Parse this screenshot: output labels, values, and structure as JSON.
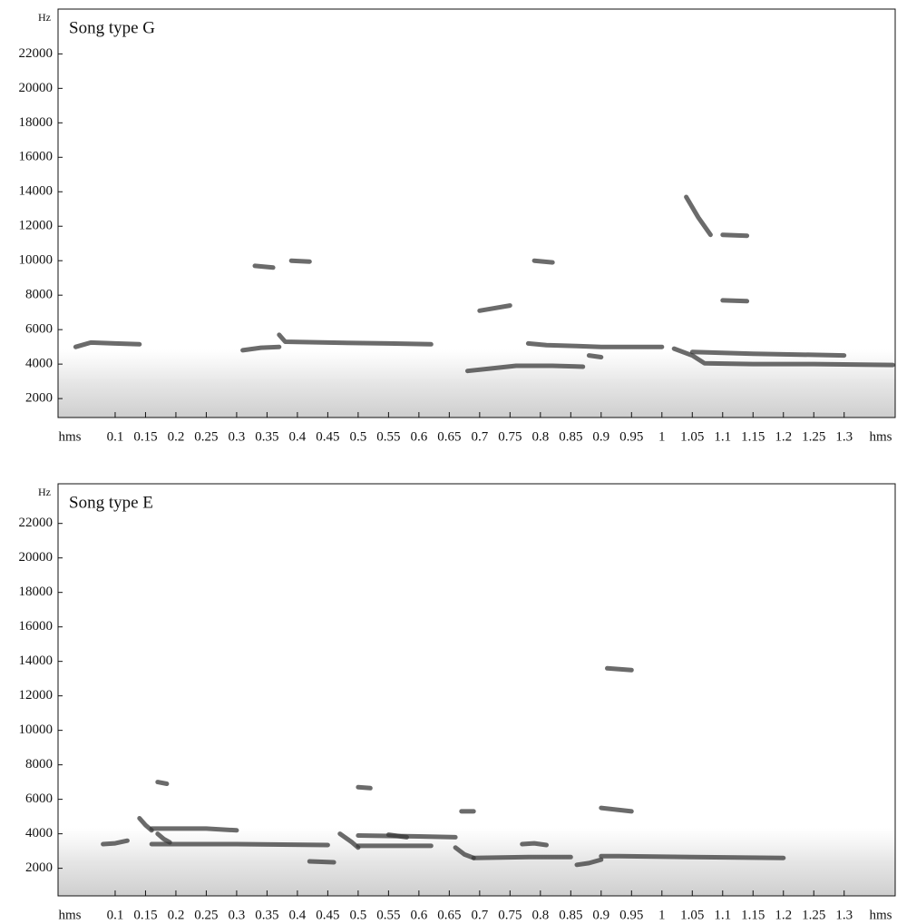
{
  "chart_data": [
    {
      "type": "spectrogram",
      "title": "Song type G",
      "y_unit": "Hz",
      "x_unit": "hms",
      "xlim": [
        0.006,
        1.384
      ],
      "ylim": [
        900,
        24600
      ],
      "xticks": [
        0.1,
        0.15,
        0.2,
        0.25,
        0.3,
        0.35,
        0.4,
        0.45,
        0.5,
        0.55,
        0.6,
        0.65,
        0.7,
        0.75,
        0.8,
        0.85,
        0.9,
        0.95,
        1,
        1.05,
        1.1,
        1.15,
        1.2,
        1.25,
        1.3
      ],
      "yticks": [
        2000,
        4000,
        6000,
        8000,
        10000,
        12000,
        14000,
        16000,
        18000,
        20000,
        22000
      ],
      "color": "#3a3a3a",
      "traces": [
        {
          "x": [
            0.035,
            0.06,
            0.1,
            0.14
          ],
          "values": [
            5000,
            5250,
            5200,
            5150
          ]
        },
        {
          "x": [
            0.31,
            0.34,
            0.37
          ],
          "values": [
            4800,
            4950,
            5000
          ]
        },
        {
          "x": [
            0.37,
            0.38,
            0.45,
            0.55,
            0.62
          ],
          "values": [
            5700,
            5300,
            5250,
            5200,
            5150
          ]
        },
        {
          "x": [
            0.68,
            0.72,
            0.76,
            0.82,
            0.87
          ],
          "values": [
            3600,
            3750,
            3900,
            3900,
            3850
          ]
        },
        {
          "x": [
            0.78,
            0.81,
            0.86,
            0.9,
            1.0
          ],
          "values": [
            5200,
            5100,
            5050,
            5000,
            5000
          ]
        },
        {
          "x": [
            0.88,
            0.9
          ],
          "values": [
            4500,
            4400
          ]
        },
        {
          "x": [
            1.02,
            1.05,
            1.07,
            1.15,
            1.25,
            1.38
          ],
          "values": [
            4900,
            4500,
            4050,
            4000,
            4000,
            3950
          ]
        },
        {
          "x": [
            1.05,
            1.15,
            1.3
          ],
          "values": [
            4700,
            4600,
            4500
          ]
        },
        {
          "x": [
            0.33,
            0.36
          ],
          "values": [
            9700,
            9600
          ]
        },
        {
          "x": [
            0.39,
            0.42
          ],
          "values": [
            10000,
            9950
          ]
        },
        {
          "x": [
            0.79,
            0.82
          ],
          "values": [
            10000,
            9900
          ]
        },
        {
          "x": [
            0.7,
            0.75
          ],
          "values": [
            7100,
            7400
          ]
        },
        {
          "x": [
            1.1,
            1.14
          ],
          "values": [
            11500,
            11450
          ]
        },
        {
          "x": [
            1.1,
            1.14
          ],
          "values": [
            7700,
            7650
          ]
        },
        {
          "x": [
            1.04,
            1.06,
            1.08
          ],
          "values": [
            13700,
            12500,
            11500
          ]
        }
      ]
    },
    {
      "type": "spectrogram",
      "title": "Song type E",
      "y_unit": "Hz",
      "x_unit": "hms",
      "xlim": [
        0.006,
        1.384
      ],
      "ylim": [
        400,
        24300
      ],
      "xticks": [
        0.1,
        0.15,
        0.2,
        0.25,
        0.3,
        0.35,
        0.4,
        0.45,
        0.5,
        0.55,
        0.6,
        0.65,
        0.7,
        0.75,
        0.8,
        0.85,
        0.9,
        0.95,
        1,
        1.05,
        1.1,
        1.15,
        1.2,
        1.25,
        1.3
      ],
      "yticks": [
        2000,
        4000,
        6000,
        8000,
        10000,
        12000,
        14000,
        16000,
        18000,
        20000,
        22000
      ],
      "color": "#3a3a3a",
      "traces": [
        {
          "x": [
            0.08,
            0.1,
            0.12
          ],
          "values": [
            3400,
            3450,
            3600
          ]
        },
        {
          "x": [
            0.14,
            0.15,
            0.16
          ],
          "values": [
            4900,
            4500,
            4200
          ]
        },
        {
          "x": [
            0.17,
            0.18,
            0.19
          ],
          "values": [
            4000,
            3700,
            3500
          ]
        },
        {
          "x": [
            0.16,
            0.3,
            0.45
          ],
          "values": [
            3400,
            3400,
            3350
          ]
        },
        {
          "x": [
            0.16,
            0.25,
            0.3
          ],
          "values": [
            4300,
            4300,
            4200
          ]
        },
        {
          "x": [
            0.42,
            0.46
          ],
          "values": [
            2400,
            2350
          ]
        },
        {
          "x": [
            0.47,
            0.49,
            0.5
          ],
          "values": [
            4000,
            3500,
            3200
          ]
        },
        {
          "x": [
            0.5,
            0.55,
            0.62
          ],
          "values": [
            3300,
            3300,
            3300
          ]
        },
        {
          "x": [
            0.55,
            0.58
          ],
          "values": [
            3950,
            3800
          ]
        },
        {
          "x": [
            0.5,
            0.6,
            0.66
          ],
          "values": [
            3900,
            3850,
            3800
          ]
        },
        {
          "x": [
            0.66,
            0.675,
            0.69
          ],
          "values": [
            3200,
            2800,
            2600
          ]
        },
        {
          "x": [
            0.69,
            0.78,
            0.85
          ],
          "values": [
            2600,
            2650,
            2650
          ]
        },
        {
          "x": [
            0.77,
            0.79,
            0.81
          ],
          "values": [
            3400,
            3450,
            3350
          ]
        },
        {
          "x": [
            0.86,
            0.88,
            0.9
          ],
          "values": [
            2200,
            2300,
            2500
          ]
        },
        {
          "x": [
            0.9,
            0.93,
            1.05,
            1.2
          ],
          "values": [
            2700,
            2700,
            2650,
            2600
          ]
        },
        {
          "x": [
            0.5,
            0.52
          ],
          "values": [
            6700,
            6650
          ]
        },
        {
          "x": [
            0.17,
            0.185
          ],
          "values": [
            7000,
            6900
          ]
        },
        {
          "x": [
            0.67,
            0.69
          ],
          "values": [
            5300,
            5300
          ]
        },
        {
          "x": [
            0.9,
            0.95
          ],
          "values": [
            5500,
            5300
          ]
        },
        {
          "x": [
            0.91,
            0.95
          ],
          "values": [
            13600,
            13500
          ]
        }
      ]
    }
  ]
}
